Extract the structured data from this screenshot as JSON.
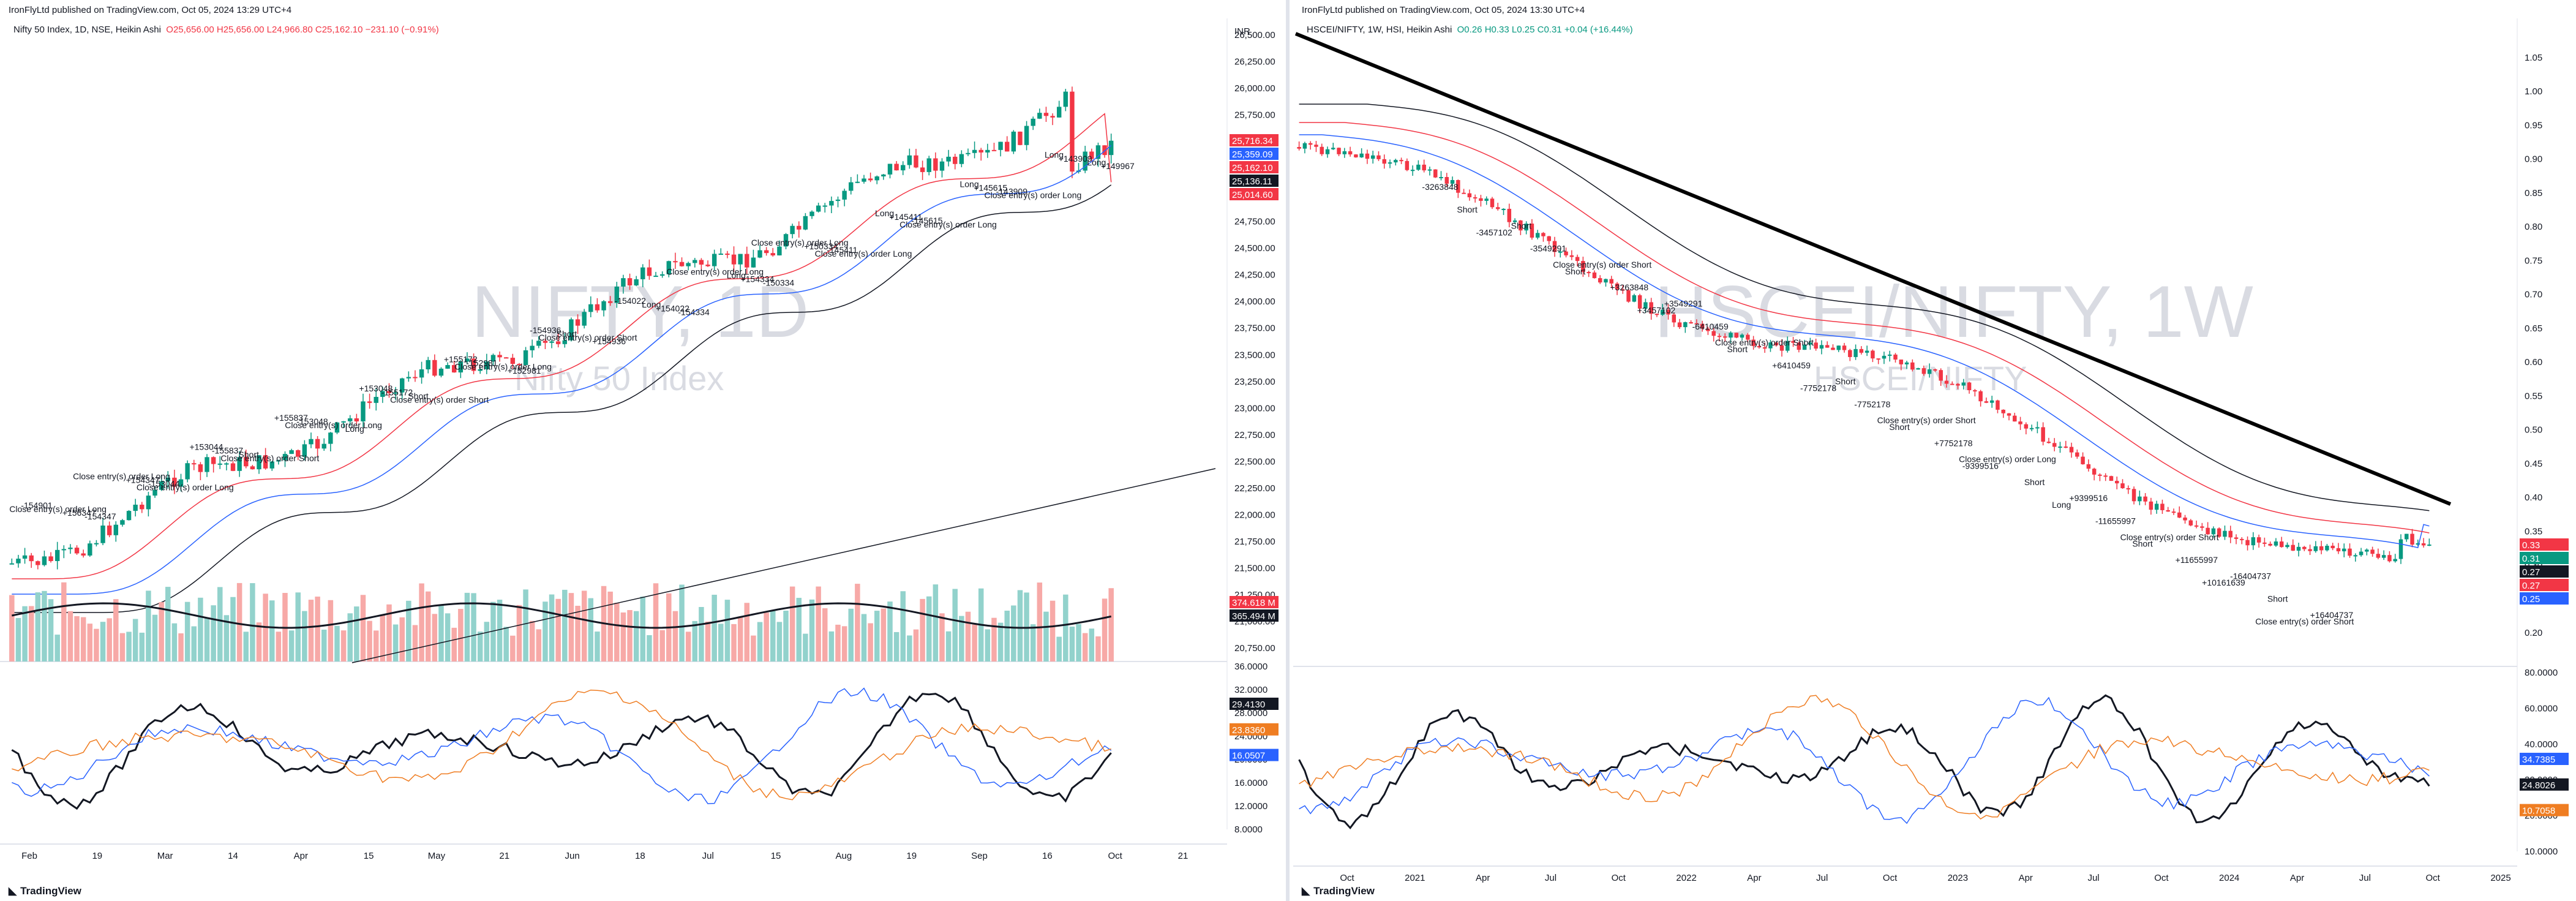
{
  "left": {
    "publisher": "IronFlyLtd published on TradingView.com, Oct 05, 2024 13:29 UTC+4",
    "legend_title": "Nifty 50 Index, 1D, NSE, Heikin Ashi",
    "ohlc": {
      "o": "O25,656.00",
      "h": "H25,656.00",
      "l": "L24,966.80",
      "c": "C25,162.10",
      "chg": "−231.10 (−0.91%)"
    },
    "currency": "INR",
    "watermark_main": "NIFTY, 1D",
    "watermark_sub": "Nifty 50 Index",
    "price_ticks": [
      "26,500.00",
      "26,250.00",
      "26,000.00",
      "25,750.00",
      "25,500.00",
      "25,250.00",
      "25,000.00",
      "24,750.00",
      "24,500.00",
      "24,250.00",
      "24,000.00",
      "23,750.00",
      "23,500.00",
      "23,250.00",
      "23,000.00",
      "22,750.00",
      "22,500.00",
      "22,250.00",
      "22,000.00",
      "21,750.00",
      "21,500.00",
      "21,250.00",
      "21,000.00",
      "20,750.00"
    ],
    "price_tags": [
      {
        "text": "25,716.34",
        "color": "#f23645"
      },
      {
        "text": "25,359.09",
        "color": "#2962ff"
      },
      {
        "text": "25,162.10",
        "color": "#f23645"
      },
      {
        "text": "25,136.11",
        "color": "#131722"
      },
      {
        "text": "25,014.60",
        "color": "#f23645"
      }
    ],
    "volume_tags": [
      {
        "text": "374.618 M",
        "color": "#f23645"
      },
      {
        "text": "365.494 M",
        "color": "#131722"
      }
    ],
    "osc_ticks": [
      "36.0000",
      "32.0000",
      "28.0000",
      "24.0000",
      "20.0000",
      "16.0000",
      "12.0000",
      "8.0000"
    ],
    "osc_tags": [
      {
        "text": "29.4130",
        "color": "#131722"
      },
      {
        "text": "23.8360",
        "color": "#ef7d22"
      },
      {
        "text": "16.0507",
        "color": "#2962ff"
      }
    ],
    "x_labels": [
      "Feb",
      "19",
      "Mar",
      "14",
      "Apr",
      "15",
      "May",
      "21",
      "Jun",
      "18",
      "Jul",
      "15",
      "Aug",
      "19",
      "Sep",
      "16",
      "Oct",
      "21"
    ],
    "annotations": [
      "-154901",
      "Close entry(s) order Long",
      "+156347",
      "-154347",
      "Close entry(s) order Long",
      "+154347",
      "-153044",
      "Close entry(s) order Long",
      "+153044",
      "-155837",
      "Short",
      "Close entry(s) order Short",
      "+155837",
      "-153048",
      "Close entry(s) order Long",
      "Long",
      "+153048",
      "-155172",
      "Short",
      "Close entry(s) order Short",
      "+155172",
      "-152981",
      "Close entry(s) order Long",
      "+152981",
      "-154936",
      "Short",
      "Close entry(s) order Short",
      "+154936",
      "-154022",
      "Long",
      "+154022",
      "-154334",
      "Close entry(s) order Long",
      "Long",
      "+154334",
      "-150334",
      "Close entry(s) order Long",
      "+150334",
      "-145411",
      "Close entry(s) order Long",
      "Long",
      "+145411",
      "-145615",
      "Close entry(s) order Long",
      "Long",
      "+145615",
      "-143909",
      "Close entry(s) order Long",
      "Long",
      "+143909",
      "Long",
      "+149967"
    ]
  },
  "right": {
    "publisher": "IronFlyLtd published on TradingView.com, Oct 05, 2024 13:30 UTC+4",
    "legend_title": "HSCEI/NIFTY, 1W, HSI, Heikin Ashi",
    "ohlc": {
      "o": "O0.26",
      "h": "H0.33",
      "l": "L0.25",
      "c": "C0.31",
      "chg": "+0.04 (+16.44%)"
    },
    "watermark_main": "HSCEI/NIFTY, 1W",
    "watermark_sub": "HSCEI/NIFTY",
    "price_ticks": [
      "1.05",
      "1.00",
      "0.95",
      "0.90",
      "0.85",
      "0.80",
      "0.75",
      "0.70",
      "0.65",
      "0.60",
      "0.55",
      "0.50",
      "0.45",
      "0.40",
      "0.35",
      "0.30",
      "0.25",
      "0.20"
    ],
    "price_tags": [
      {
        "text": "0.33",
        "color": "#f23645"
      },
      {
        "text": "0.31",
        "color": "#089981"
      },
      {
        "text": "0.27",
        "color": "#131722"
      },
      {
        "text": "0.27",
        "color": "#f23645"
      },
      {
        "text": "0.25",
        "color": "#2962ff"
      }
    ],
    "osc_ticks": [
      "80.0000",
      "60.0000",
      "40.0000",
      "30.0000",
      "20.0000",
      "10.0000"
    ],
    "osc_tags": [
      {
        "text": "34.7385",
        "color": "#2962ff"
      },
      {
        "text": "24.8026",
        "color": "#131722"
      },
      {
        "text": "10.7058",
        "color": "#ef7d22"
      }
    ],
    "x_labels": [
      "Oct",
      "2021",
      "Apr",
      "Jul",
      "Oct",
      "2022",
      "Apr",
      "Jul",
      "Oct",
      "2023",
      "Apr",
      "Jul",
      "Oct",
      "2024",
      "Apr",
      "Jul",
      "Oct",
      "2025"
    ],
    "annotations": [
      "-3263848",
      "Short",
      "-3457102",
      "Short",
      "-3549291",
      "Short",
      "Close entry(s) order Short",
      "+3263848",
      "+3457102",
      "+3549291",
      "-6410459",
      "Short",
      "Close entry(s) order Short",
      "+6410459",
      "-7752178",
      "Short",
      "-7752178",
      "Short",
      "Close entry(s) order Short",
      "+7752178",
      "-9399516",
      "Close entry(s) order Long",
      "Short",
      "Long",
      "+9399516",
      "-11655997",
      "Short",
      "Close entry(s) order Short",
      "+11655997",
      "+10161639",
      "-16404737",
      "Short",
      "Close entry(s) order Short",
      "+16404737"
    ]
  },
  "footer_brand": "TradingView"
}
